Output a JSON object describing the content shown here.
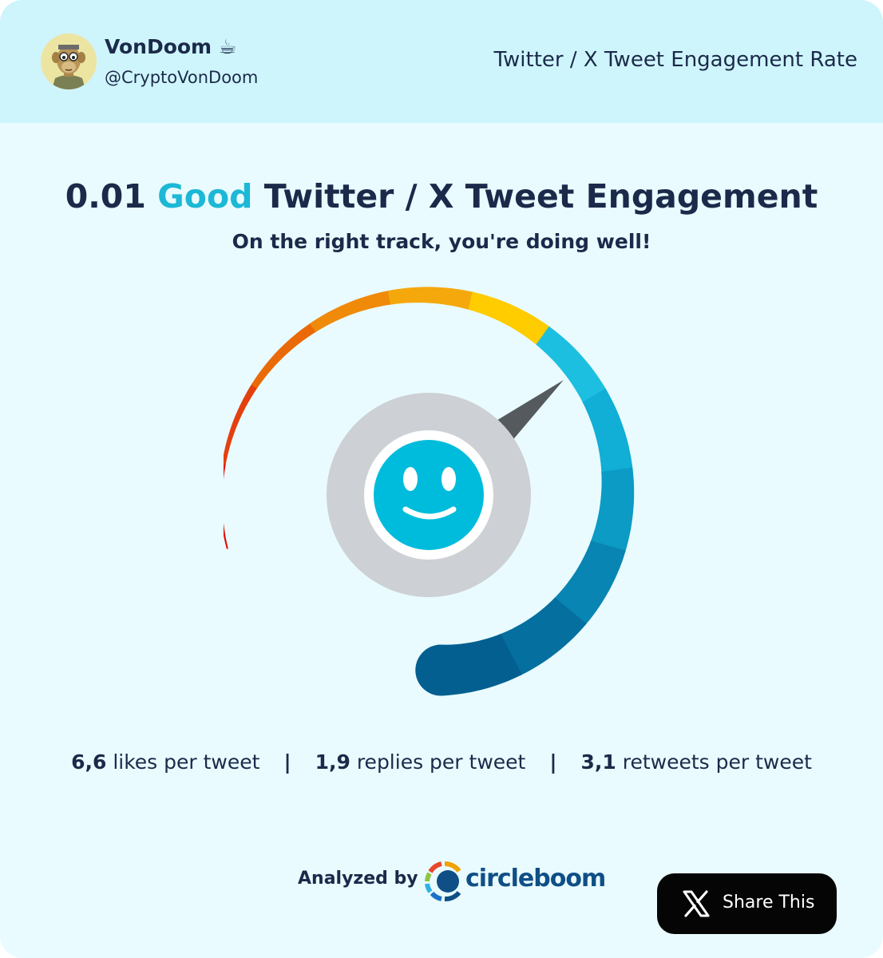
{
  "profile": {
    "name": "VonDoom",
    "emoji": "☕",
    "handle": "@CryptoVonDoom"
  },
  "header": {
    "title": "Twitter / X Tweet Engagement Rate"
  },
  "result": {
    "score": "0.01",
    "rating": "Good",
    "headline_rest": "Twitter / X Tweet Engagement",
    "message": "On the right track, you're doing well!",
    "rating_color": "#1cb8d6",
    "face": "smiling-face-icon"
  },
  "gauge": {
    "level_fraction": 0.55,
    "segment_colors": [
      "#e00d0d",
      "#e4400f",
      "#ea6a07",
      "#f08a09",
      "#f5a80c",
      "#ffcc00",
      "#1dbfe0",
      "#11aed6",
      "#0b9bc4",
      "#0885b2",
      "#056fa0",
      "#035f90"
    ]
  },
  "stats": {
    "likes_value": "6,6",
    "likes_label": "likes per tweet",
    "replies_value": "1,9",
    "replies_label": "replies per tweet",
    "retweets_value": "3,1",
    "retweets_label": "retweets per tweet",
    "separator": "|"
  },
  "footer": {
    "analyzed_by": "Analyzed by",
    "brand": "circleboom",
    "brand_color": "#0f4f86",
    "share_label": "Share This"
  }
}
